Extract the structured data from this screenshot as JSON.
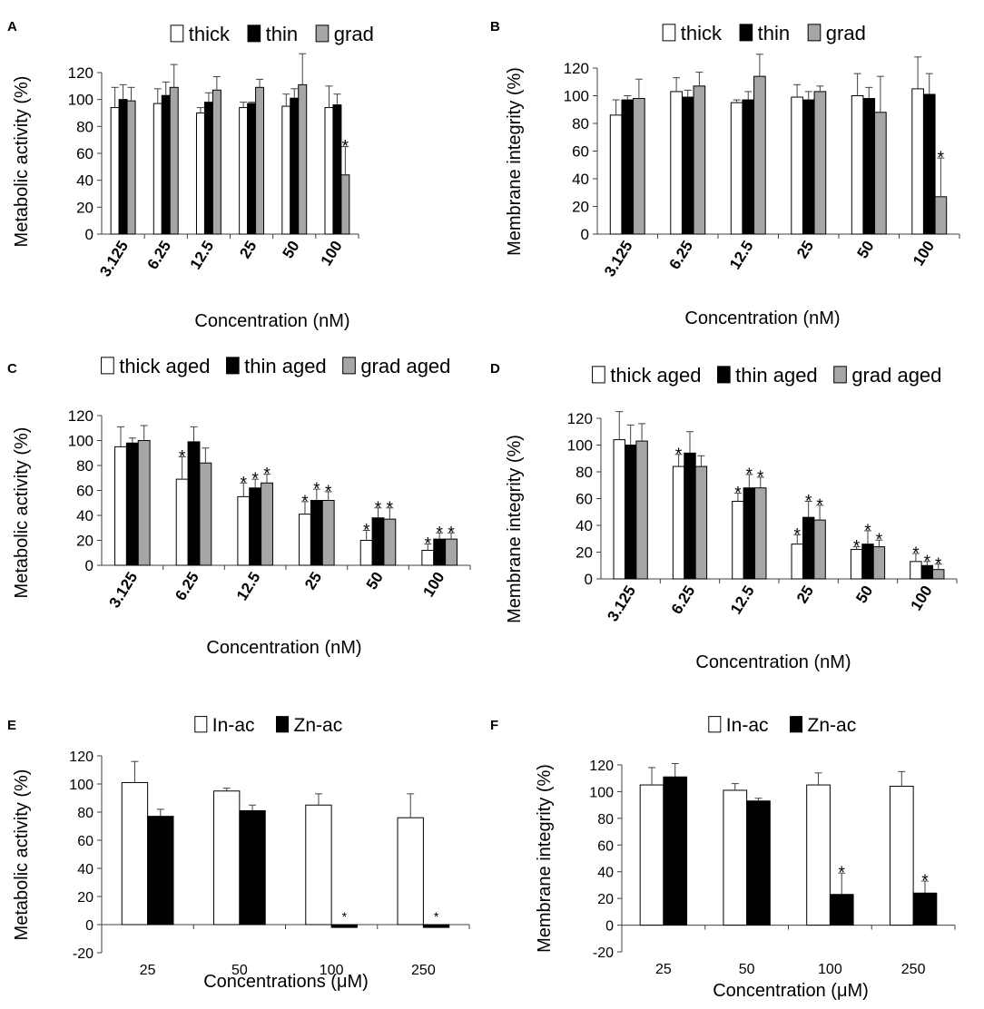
{
  "colors": {
    "white": "#ffffff",
    "black": "#000000",
    "gray": "#a6a6a6",
    "axis": "#404040"
  },
  "chart_data": [
    {
      "type": "bar",
      "panel": "A",
      "ylabel": "Metabolic activity (%)",
      "xlabel": "Concentration (nM)",
      "categories": [
        "3.125",
        "6.25",
        "12.5",
        "25",
        "50",
        "100"
      ],
      "ylim": [
        0,
        120
      ],
      "yticks": [
        "0",
        "20",
        "40",
        "60",
        "80",
        "100",
        "120"
      ],
      "series": [
        {
          "name": "thick",
          "color": "#ffffff",
          "values": [
            94,
            97,
            90,
            94,
            95,
            94
          ],
          "errors": [
            15,
            11,
            4,
            4,
            9,
            16
          ],
          "marks": [
            "",
            "",
            "",
            "",
            "",
            ""
          ]
        },
        {
          "name": "thin",
          "color": "#000000",
          "values": [
            100,
            103,
            98,
            97,
            101,
            96
          ],
          "errors": [
            11,
            10,
            7,
            1,
            7,
            8
          ],
          "marks": [
            "",
            "",
            "",
            "",
            "",
            ""
          ]
        },
        {
          "name": "grad",
          "color": "#a6a6a6",
          "values": [
            99,
            109,
            107,
            109,
            111,
            44
          ],
          "errors": [
            10,
            17,
            10,
            6,
            23,
            21
          ],
          "marks": [
            "",
            "",
            "",
            "",
            "",
            "*"
          ]
        }
      ]
    },
    {
      "type": "bar",
      "panel": "B",
      "ylabel": "Membrane integrity (%)",
      "xlabel": "Concentration (nM)",
      "categories": [
        "3.125",
        "6.25",
        "12.5",
        "25",
        "50",
        "100"
      ],
      "ylim": [
        0,
        120
      ],
      "yticks": [
        "0",
        "20",
        "40",
        "60",
        "80",
        "100",
        "120"
      ],
      "series": [
        {
          "name": "thick",
          "color": "#ffffff",
          "values": [
            86,
            103,
            95,
            99,
            100,
            105
          ],
          "errors": [
            11,
            10,
            2,
            9,
            16,
            23
          ],
          "marks": [
            "",
            "",
            "",
            "",
            "",
            ""
          ]
        },
        {
          "name": "thin",
          "color": "#000000",
          "values": [
            97,
            99,
            97,
            97,
            98,
            101
          ],
          "errors": [
            3,
            5,
            6,
            6,
            8,
            15
          ],
          "marks": [
            "",
            "",
            "",
            "",
            "",
            ""
          ]
        },
        {
          "name": "grad",
          "color": "#a6a6a6",
          "values": [
            98,
            107,
            114,
            103,
            88,
            27
          ],
          "errors": [
            14,
            10,
            16,
            4,
            26,
            28
          ],
          "marks": [
            "",
            "",
            "",
            "",
            "",
            "*"
          ]
        }
      ]
    },
    {
      "type": "bar",
      "panel": "C",
      "ylabel": "Metabolic activity (%)",
      "xlabel": "Concentration (nM)",
      "categories": [
        "3.125",
        "6.25",
        "12.5",
        "25",
        "50",
        "100"
      ],
      "ylim": [
        0,
        120
      ],
      "yticks": [
        "0",
        "20",
        "40",
        "60",
        "80",
        "100",
        "120"
      ],
      "series": [
        {
          "name": "thick aged",
          "color": "#ffffff",
          "values": [
            95,
            69,
            55,
            41,
            20,
            12
          ],
          "errors": [
            16,
            18,
            11,
            10,
            8,
            5
          ],
          "marks": [
            "",
            "*",
            "*",
            "*",
            "*",
            "*"
          ]
        },
        {
          "name": "thin aged",
          "color": "#000000",
          "values": [
            98,
            99,
            62,
            52,
            38,
            21
          ],
          "errors": [
            4,
            12,
            7,
            9,
            8,
            5
          ],
          "marks": [
            "",
            "",
            "*",
            "*",
            "*",
            "*"
          ]
        },
        {
          "name": "grad aged",
          "color": "#a6a6a6",
          "values": [
            100,
            82,
            66,
            52,
            37,
            21
          ],
          "errors": [
            12,
            12,
            7,
            7,
            9,
            5
          ],
          "marks": [
            "",
            "",
            "*",
            "*",
            "*",
            "*"
          ]
        }
      ]
    },
    {
      "type": "bar",
      "panel": "D",
      "ylabel": "Membrane integrity (%)",
      "xlabel": "Concentration (nM)",
      "categories": [
        "3.125",
        "6.25",
        "12.5",
        "25",
        "50",
        "100"
      ],
      "ylim": [
        0,
        120
      ],
      "yticks": [
        "0",
        "20",
        "40",
        "60",
        "80",
        "100",
        "120"
      ],
      "series": [
        {
          "name": "thick aged",
          "color": "#ffffff",
          "values": [
            104,
            84,
            58,
            26,
            22,
            13
          ],
          "errors": [
            21,
            9,
            6,
            7,
            2,
            6
          ],
          "marks": [
            "",
            "*",
            "*",
            "*",
            "*",
            "*"
          ]
        },
        {
          "name": "thin aged",
          "color": "#000000",
          "values": [
            100,
            94,
            68,
            46,
            26,
            10
          ],
          "errors": [
            15,
            16,
            10,
            12,
            10,
            3
          ],
          "marks": [
            "",
            "",
            "*",
            "*",
            "*",
            "*"
          ]
        },
        {
          "name": "grad aged",
          "color": "#a6a6a6",
          "values": [
            103,
            84,
            68,
            44,
            24,
            7
          ],
          "errors": [
            13,
            8,
            8,
            11,
            5,
            4
          ],
          "marks": [
            "",
            "",
            "*",
            "*",
            "*",
            "*"
          ]
        }
      ]
    },
    {
      "type": "bar",
      "panel": "E",
      "ylabel": "Metabolic activity (%)",
      "xlabel": "Concentrations (μM)",
      "categories": [
        "25",
        "50",
        "100",
        "250"
      ],
      "ylim": [
        -20,
        120
      ],
      "yticks": [
        "-20",
        "0",
        "20",
        "40",
        "60",
        "80",
        "100",
        "120"
      ],
      "series": [
        {
          "name": "In-ac",
          "color": "#ffffff",
          "values": [
            101,
            95,
            85,
            76
          ],
          "errors": [
            15,
            2,
            8,
            17
          ],
          "marks": [
            "",
            "",
            "",
            ""
          ]
        },
        {
          "name": "Zn-ac",
          "color": "#000000",
          "values": [
            77,
            81,
            -2,
            -2
          ],
          "errors": [
            5,
            4,
            0,
            0
          ],
          "marks": [
            "",
            "",
            "*",
            "*"
          ]
        }
      ]
    },
    {
      "type": "bar",
      "panel": "F",
      "ylabel": "Membrane integrity (%)",
      "xlabel": "Concentration (μM)",
      "categories": [
        "25",
        "50",
        "100",
        "250"
      ],
      "ylim": [
        -20,
        120
      ],
      "yticks": [
        "-20",
        "0",
        "20",
        "40",
        "60",
        "80",
        "100",
        "120"
      ],
      "series": [
        {
          "name": "In-ac",
          "color": "#ffffff",
          "values": [
            105,
            101,
            105,
            104
          ],
          "errors": [
            13,
            5,
            9,
            11
          ],
          "marks": [
            "",
            "",
            "",
            ""
          ]
        },
        {
          "name": "Zn-ac",
          "color": "#000000",
          "values": [
            111,
            93,
            23,
            24
          ],
          "errors": [
            10,
            2,
            16,
            9
          ],
          "marks": [
            "",
            "",
            "*",
            "*"
          ]
        }
      ]
    }
  ]
}
